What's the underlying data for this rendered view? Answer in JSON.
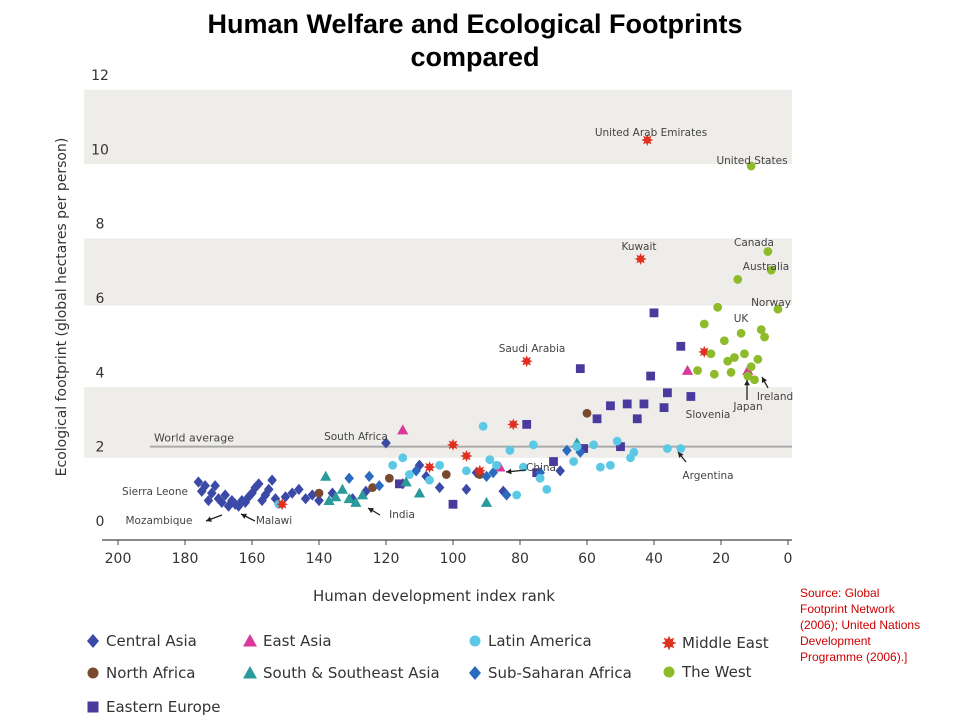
{
  "title_line1": "Human Welfare and Ecological Footprints",
  "title_line2": "compared",
  "source": "Source: Global Footprint Network (2006); United Nations Development Programme (2006).]",
  "chart_data": {
    "type": "scatter",
    "xlabel": "Human development index rank",
    "ylabel": "Ecological footprint (global hectares per person)",
    "xlim": [
      200,
      0
    ],
    "ylim": [
      0,
      12
    ],
    "x_ticks": [
      "200",
      "180",
      "160",
      "140",
      "120",
      "100",
      "80",
      "60",
      "40",
      "20",
      "0"
    ],
    "y_ticks": [
      "0",
      "2",
      "4",
      "6",
      "8",
      "10",
      "12"
    ],
    "world_average": {
      "label": "World average",
      "value": 2.0
    },
    "bands": [
      [
        1.7,
        3.6
      ],
      [
        5.8,
        7.6
      ],
      [
        9.6,
        11.6
      ]
    ],
    "series": [
      {
        "name": "Central Asia",
        "color": "#3b4aa6",
        "marker": "diamond",
        "points": [
          [
            176,
            1.05
          ],
          [
            175,
            0.8
          ],
          [
            174,
            0.95
          ],
          [
            173,
            0.55
          ],
          [
            172,
            0.75
          ],
          [
            171,
            0.95
          ],
          [
            170,
            0.6
          ],
          [
            169,
            0.5
          ],
          [
            168,
            0.7
          ],
          [
            167,
            0.4
          ],
          [
            166,
            0.55
          ],
          [
            165,
            0.45
          ],
          [
            164,
            0.4
          ],
          [
            163,
            0.55
          ],
          [
            162,
            0.5
          ],
          [
            161,
            0.65
          ],
          [
            160,
            0.75
          ],
          [
            159,
            0.9
          ],
          [
            158,
            1.0
          ],
          [
            157,
            0.55
          ],
          [
            156,
            0.7
          ],
          [
            155,
            0.85
          ],
          [
            154,
            1.1
          ],
          [
            153,
            0.6
          ],
          [
            150,
            0.65
          ],
          [
            148,
            0.75
          ],
          [
            146,
            0.85
          ],
          [
            144,
            0.6
          ],
          [
            142,
            0.7
          ],
          [
            140,
            0.55
          ],
          [
            136,
            0.75
          ],
          [
            130,
            0.6
          ],
          [
            126,
            0.8
          ],
          [
            120,
            2.1
          ],
          [
            115,
            1.0
          ],
          [
            110,
            1.5
          ],
          [
            108,
            1.2
          ],
          [
            104,
            0.9
          ],
          [
            96,
            0.85
          ],
          [
            93,
            1.3
          ],
          [
            85,
            0.8
          ],
          [
            68,
            1.35
          ]
        ]
      },
      {
        "name": "North Africa",
        "color": "#7a4a2e",
        "marker": "circle",
        "points": [
          [
            140,
            0.75
          ],
          [
            124,
            0.9
          ],
          [
            119,
            1.15
          ],
          [
            102,
            1.25
          ],
          [
            92,
            1.25
          ],
          [
            60,
            2.9
          ]
        ]
      },
      {
        "name": "Eastern Europe",
        "color": "#4a3a9e",
        "marker": "square",
        "points": [
          [
            116,
            1.0
          ],
          [
            100,
            0.45
          ],
          [
            78,
            2.6
          ],
          [
            75,
            1.3
          ],
          [
            70,
            1.6
          ],
          [
            62,
            4.1
          ],
          [
            61,
            1.95
          ],
          [
            57,
            2.75
          ],
          [
            53,
            3.1
          ],
          [
            50,
            2.0
          ],
          [
            48,
            3.15
          ],
          [
            45,
            2.75
          ],
          [
            43,
            3.15
          ],
          [
            41,
            3.9
          ],
          [
            40,
            5.6
          ],
          [
            37,
            3.05
          ],
          [
            36,
            3.45
          ],
          [
            32,
            4.7
          ],
          [
            29,
            3.35
          ]
        ]
      },
      {
        "name": "East Asia",
        "color": "#d93a9a",
        "marker": "triangle",
        "points": [
          [
            115,
            2.45
          ],
          [
            86,
            1.45
          ],
          [
            30,
            4.05
          ],
          [
            12,
            4.05
          ]
        ]
      },
      {
        "name": "South & Southeast Asia",
        "color": "#2a9a9a",
        "marker": "triangle",
        "points": [
          [
            138,
            1.2
          ],
          [
            137,
            0.55
          ],
          [
            135,
            0.65
          ],
          [
            133,
            0.85
          ],
          [
            131,
            0.6
          ],
          [
            129,
            0.5
          ],
          [
            127,
            0.7
          ],
          [
            114,
            1.05
          ],
          [
            110,
            0.75
          ],
          [
            90,
            0.5
          ],
          [
            63,
            2.1
          ]
        ]
      },
      {
        "name": "Sub-Saharan Africa",
        "color": "#2a6abf",
        "marker": "diamond",
        "points": [
          [
            131,
            1.15
          ],
          [
            125,
            1.2
          ],
          [
            122,
            0.95
          ],
          [
            111,
            1.35
          ],
          [
            90,
            1.2
          ],
          [
            88,
            1.3
          ],
          [
            84,
            0.7
          ],
          [
            74,
            1.3
          ],
          [
            66,
            1.9
          ],
          [
            62,
            1.85
          ]
        ]
      },
      {
        "name": "Latin America",
        "color": "#5bc8e6",
        "marker": "circle",
        "points": [
          [
            152,
            0.45
          ],
          [
            118,
            1.5
          ],
          [
            115,
            1.7
          ],
          [
            113,
            1.25
          ],
          [
            107,
            1.1
          ],
          [
            104,
            1.5
          ],
          [
            96,
            1.35
          ],
          [
            91,
            2.55
          ],
          [
            89,
            1.65
          ],
          [
            87,
            1.5
          ],
          [
            83,
            1.9
          ],
          [
            81,
            0.7
          ],
          [
            79,
            1.45
          ],
          [
            76,
            2.05
          ],
          [
            74,
            1.15
          ],
          [
            72,
            0.85
          ],
          [
            64,
            1.6
          ],
          [
            63,
            2.0
          ],
          [
            58,
            2.05
          ],
          [
            56,
            1.45
          ],
          [
            53,
            1.5
          ],
          [
            51,
            2.15
          ],
          [
            47,
            1.7
          ],
          [
            46,
            1.85
          ],
          [
            36,
            1.95
          ],
          [
            32,
            1.95
          ]
        ]
      },
      {
        "name": "Middle East",
        "color": "#e03020",
        "marker": "burst",
        "points": [
          [
            151,
            0.45
          ],
          [
            107,
            1.45
          ],
          [
            100,
            2.05
          ],
          [
            96,
            1.75
          ],
          [
            92,
            1.35
          ],
          [
            82,
            2.6
          ],
          [
            78,
            4.3
          ],
          [
            44,
            7.05
          ],
          [
            42,
            10.25
          ],
          [
            25,
            4.55
          ]
        ]
      },
      {
        "name": "The West",
        "color": "#8dbb2a",
        "marker": "circle",
        "points": [
          [
            21,
            5.75
          ],
          [
            19,
            4.85
          ],
          [
            17,
            4.0
          ],
          [
            16,
            4.4
          ],
          [
            14,
            5.05
          ],
          [
            13,
            4.5
          ],
          [
            12,
            3.9
          ],
          [
            11,
            4.15
          ],
          [
            10,
            3.8
          ],
          [
            9,
            4.35
          ],
          [
            8,
            5.15
          ],
          [
            7,
            4.95
          ],
          [
            6,
            7.25
          ],
          [
            5,
            6.75
          ],
          [
            3,
            5.7
          ],
          [
            11,
            9.55
          ],
          [
            25,
            5.3
          ],
          [
            23,
            4.5
          ],
          [
            22,
            3.95
          ],
          [
            15,
            6.5
          ],
          [
            18,
            4.3
          ],
          [
            27,
            4.05
          ]
        ]
      }
    ],
    "annotations": [
      "United Arab Emirates",
      "United States",
      "Kuwait",
      "Canada",
      "Australia",
      "Norway",
      "UK",
      "Saudi Arabia",
      "Ireland",
      "Japan",
      "Slovenia",
      "South Africa",
      "China",
      "Argentina",
      "Sierra Leone",
      "Mozambique",
      "Malawi",
      "India"
    ]
  },
  "legend": [
    {
      "label": "Central Asia",
      "color": "#3b4aa6",
      "marker": "diamond"
    },
    {
      "label": "East Asia",
      "color": "#d93a9a",
      "marker": "triangle"
    },
    {
      "label": "Latin America",
      "color": "#5bc8e6",
      "marker": "circle"
    },
    {
      "label": "Middle East",
      "color": "#e03020",
      "marker": "burst"
    },
    {
      "label": "North Africa",
      "color": "#7a4a2e",
      "marker": "circle"
    },
    {
      "label": "South & Southeast Asia",
      "color": "#2a9a9a",
      "marker": "triangle"
    },
    {
      "label": "Sub-Saharan Africa",
      "color": "#2a6abf",
      "marker": "diamond"
    },
    {
      "label": "The West",
      "color": "#8dbb2a",
      "marker": "circle"
    },
    {
      "label": "Eastern Europe",
      "color": "#4a3a9e",
      "marker": "square"
    }
  ]
}
